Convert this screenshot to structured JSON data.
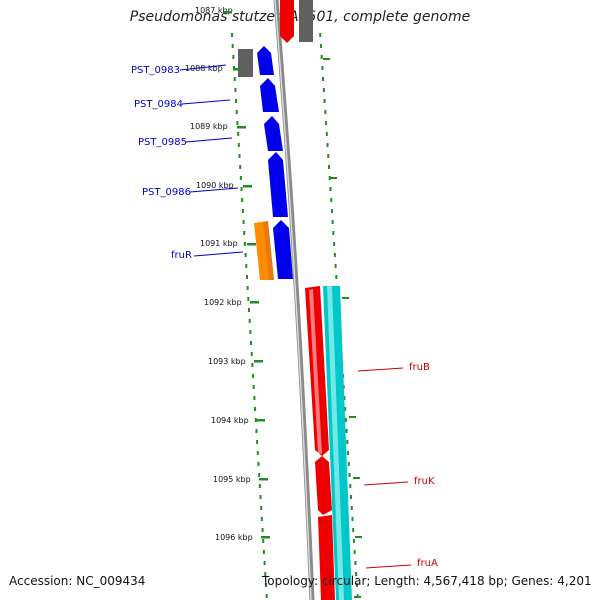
{
  "title": "Pseudomonas stutzeri A1501, complete genome",
  "accession": "Accession: NC_009434",
  "topology": "Topology: circular; Length: 4,567,418 bp; Genes: 4,201",
  "colors": {
    "forward_cds": "#0000ee",
    "regulator": "#ff8c00",
    "other_cds": "#606060",
    "fru_cds": "#ee0000",
    "rna_track": "#00c8c8",
    "backbone": "#8a8a8a",
    "gc_dots": "#228b22",
    "label_blue": "#0000cc",
    "label_red": "#cc0000"
  },
  "ticks": [
    "1087 kbp",
    "1088 kbp",
    "1089 kbp",
    "1090 kbp",
    "1091 kbp",
    "1092 kbp",
    "1093 kbp",
    "1094 kbp",
    "1095 kbp",
    "1096 kbp"
  ],
  "genes": [
    {
      "name": "PST_0983",
      "color": "label_blue"
    },
    {
      "name": "PST_0984",
      "color": "label_blue"
    },
    {
      "name": "PST_0985",
      "color": "label_blue"
    },
    {
      "name": "PST_0986",
      "color": "label_blue"
    },
    {
      "name": "fruR",
      "color": "label_blue"
    },
    {
      "name": "fruB",
      "color": "label_red"
    },
    {
      "name": "fruK",
      "color": "label_red"
    },
    {
      "name": "fruA",
      "color": "label_red"
    }
  ]
}
